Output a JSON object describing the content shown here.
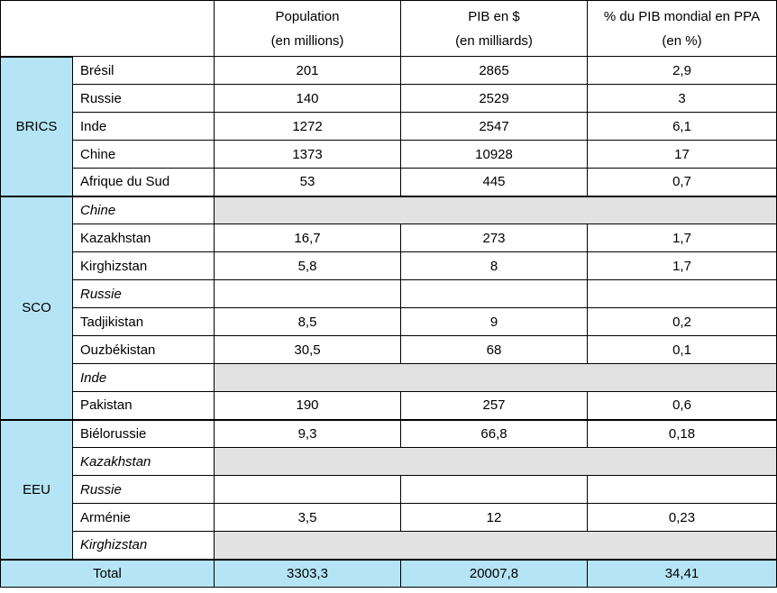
{
  "header": {
    "population": [
      "Population",
      "(en millions)"
    ],
    "pib": [
      "PIB en $",
      "(en milliards)"
    ],
    "ppa": [
      "% du PIB mondial en PPA",
      "(en %)"
    ]
  },
  "groups": {
    "brics": "BRICS",
    "sco": "SCO",
    "eeu": "EEU"
  },
  "rows": [
    {
      "country": "Brésil",
      "population": "201",
      "pib": "2865",
      "ppa": "2,9"
    },
    {
      "country": "Russie",
      "population": "140",
      "pib": "2529",
      "ppa": "3"
    },
    {
      "country": "Inde",
      "population": "1272",
      "pib": "2547",
      "ppa": "6,1"
    },
    {
      "country": "Chine",
      "population": "1373",
      "pib": "10928",
      "ppa": "17"
    },
    {
      "country": "Afrique du Sud",
      "population": "53",
      "pib": "445",
      "ppa": "0,7"
    },
    {
      "country": "Chine",
      "population": "",
      "pib": "",
      "ppa": ""
    },
    {
      "country": "Kazakhstan",
      "population": "16,7",
      "pib": "273",
      "ppa": "1,7"
    },
    {
      "country": "Kirghizstan",
      "population": "5,8",
      "pib": "8",
      "ppa": "1,7"
    },
    {
      "country": "Russie",
      "population": "",
      "pib": "",
      "ppa": ""
    },
    {
      "country": "Tadjikistan",
      "population": "8,5",
      "pib": "9",
      "ppa": "0,2"
    },
    {
      "country": "Ouzbékistan",
      "population": "30,5",
      "pib": "68",
      "ppa": "0,1"
    },
    {
      "country": "Inde",
      "population": "",
      "pib": "",
      "ppa": ""
    },
    {
      "country": "Pakistan",
      "population": "190",
      "pib": "257",
      "ppa": "0,6"
    },
    {
      "country": "Biélorussie",
      "population": "9,3",
      "pib": "66,8",
      "ppa": "0,18"
    },
    {
      "country": "Kazakhstan",
      "population": "",
      "pib": "",
      "ppa": ""
    },
    {
      "country": "Russie",
      "population": "",
      "pib": "",
      "ppa": ""
    },
    {
      "country": "Arménie",
      "population": "3,5",
      "pib": "12",
      "ppa": "0,23"
    },
    {
      "country": "Kirghizstan",
      "population": "",
      "pib": "",
      "ppa": ""
    }
  ],
  "total": {
    "label": "Total",
    "population": "3303,3",
    "pib": "20007,8",
    "ppa": "34,41"
  },
  "colors": {
    "group_bg": "#b5e4f5",
    "shaded_bg": "#e2e2e2"
  }
}
